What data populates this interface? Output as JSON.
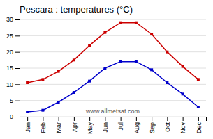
{
  "chart_data": {
    "type": "line",
    "title": "Pescara : temperatures (°C)",
    "categories": [
      "Jan",
      "Feb",
      "Mar",
      "Apr",
      "May",
      "Jun",
      "Jul",
      "Aug",
      "Sep",
      "Oct",
      "Nov",
      "Dec"
    ],
    "series": [
      {
        "color": "#cc0000",
        "marker": "square",
        "values": [
          10.5,
          11.5,
          14.0,
          17.5,
          22.0,
          26.0,
          29.0,
          29.0,
          25.5,
          20.0,
          15.5,
          11.5
        ]
      },
      {
        "color": "#0000cc",
        "marker": "square",
        "values": [
          1.5,
          2.0,
          4.5,
          7.5,
          11.0,
          15.0,
          17.0,
          17.0,
          14.5,
          10.5,
          7.0,
          3.0
        ]
      }
    ],
    "ylim": [
      0,
      30
    ],
    "yticks": [
      0,
      5,
      10,
      15,
      20,
      25,
      30
    ],
    "grid": true,
    "annotations": [
      "www.allmetsat.com"
    ]
  }
}
